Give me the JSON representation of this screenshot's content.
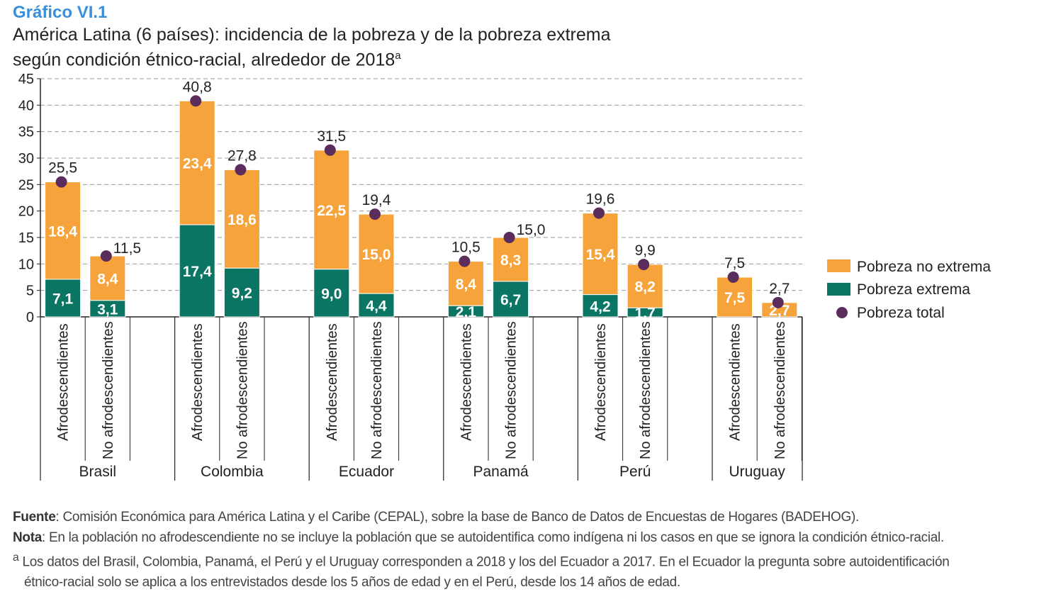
{
  "header": {
    "kicker": "Gráfico VI.1",
    "title_line1": "América Latina (6 países): incidencia de la pobreza y de la pobreza extrema",
    "title_line2": "según condición étnico-racial, alrededor de 2018",
    "title_sup": "a"
  },
  "chart_data": {
    "type": "bar",
    "stacked": true,
    "ylim": [
      0,
      45
    ],
    "yticks": [
      "0",
      "5",
      "10",
      "15",
      "20",
      "25",
      "30",
      "35",
      "40",
      "45"
    ],
    "grid": true,
    "legend_placement": "right",
    "colors": {
      "no_extrema": "#f7a33b",
      "extrema": "#0b7564",
      "total": "#5a2d5c"
    },
    "legend": [
      "Pobreza no extrema",
      "Pobreza extrema",
      "Pobreza total"
    ],
    "groups": [
      {
        "name": "Brasil",
        "bars": [
          {
            "category": "Afrodescendientes",
            "extrema": 7.1,
            "no_extrema": 18.4,
            "total": 25.5,
            "labels": [
              "7,1",
              "18,4",
              "25,5"
            ]
          },
          {
            "category": "No afrodescendientes",
            "extrema": 3.1,
            "no_extrema": 8.4,
            "total": 11.5,
            "labels": [
              "3,1",
              "8,4",
              "11,5"
            ]
          }
        ]
      },
      {
        "name": "Colombia",
        "bars": [
          {
            "category": "Afrodescendientes",
            "extrema": 17.4,
            "no_extrema": 23.4,
            "total": 40.8,
            "labels": [
              "17,4",
              "23,4",
              "40,8"
            ]
          },
          {
            "category": "No afrodescendientes",
            "extrema": 9.2,
            "no_extrema": 18.6,
            "total": 27.8,
            "labels": [
              "9,2",
              "18,6",
              "27,8"
            ]
          }
        ]
      },
      {
        "name": "Ecuador",
        "bars": [
          {
            "category": "Afrodescendientes",
            "extrema": 9.0,
            "no_extrema": 22.5,
            "total": 31.5,
            "labels": [
              "9,0",
              "22,5",
              "31,5"
            ]
          },
          {
            "category": "No afrodescendientes",
            "extrema": 4.4,
            "no_extrema": 15.0,
            "total": 19.4,
            "labels": [
              "4,4",
              "15,0",
              "19,4"
            ]
          }
        ]
      },
      {
        "name": "Panamá",
        "bars": [
          {
            "category": "Afrodescendientes",
            "extrema": 2.1,
            "no_extrema": 8.4,
            "total": 10.5,
            "labels": [
              "2,1",
              "8,4",
              "10,5"
            ]
          },
          {
            "category": "No afrodescendientes",
            "extrema": 6.7,
            "no_extrema": 8.3,
            "total": 15.0,
            "labels": [
              "6,7",
              "8,3",
              "15,0"
            ]
          }
        ]
      },
      {
        "name": "Perú",
        "bars": [
          {
            "category": "Afrodescendientes",
            "extrema": 4.2,
            "no_extrema": 15.4,
            "total": 19.6,
            "labels": [
              "4,2",
              "15,4",
              "19,6"
            ]
          },
          {
            "category": "No afrodescendientes",
            "extrema": 1.7,
            "no_extrema": 8.2,
            "total": 9.9,
            "labels": [
              "1,7",
              "8,2",
              "9,9"
            ]
          }
        ]
      },
      {
        "name": "Uruguay",
        "bars": [
          {
            "category": "Afrodescendientes",
            "extrema": 0,
            "no_extrema": 7.5,
            "total": 7.5,
            "labels": [
              "",
              "7,5",
              "7,5"
            ]
          },
          {
            "category": "No afrodescendientes",
            "extrema": 0,
            "no_extrema": 2.7,
            "total": 2.7,
            "labels": [
              "",
              "2,7",
              "2,7"
            ]
          }
        ]
      }
    ]
  },
  "notes": {
    "fuente_label": "Fuente",
    "fuente_text": ": Comisión Económica para América Latina y el Caribe (CEPAL), sobre la base de Banco de Datos de Encuestas de Hogares (BADEHOG).",
    "nota_label": "Nota",
    "nota_text": ":    En la población no afrodescendiente no se incluye la población que se autoidentifica como indígena ni los casos en que se ignora la condición étnico-racial.",
    "a_mark": "a",
    "a_text": " Los datos del Brasil, Colombia, Panamá, el Perú y el Uruguay corresponden a 2018 y los del Ecuador a 2017. En el Ecuador la pregunta sobre autoidentificación",
    "a_text2": "étnico-racial solo se aplica a los entrevistados desde los 5 años de edad y en el Perú, desde los 14 años de edad."
  }
}
